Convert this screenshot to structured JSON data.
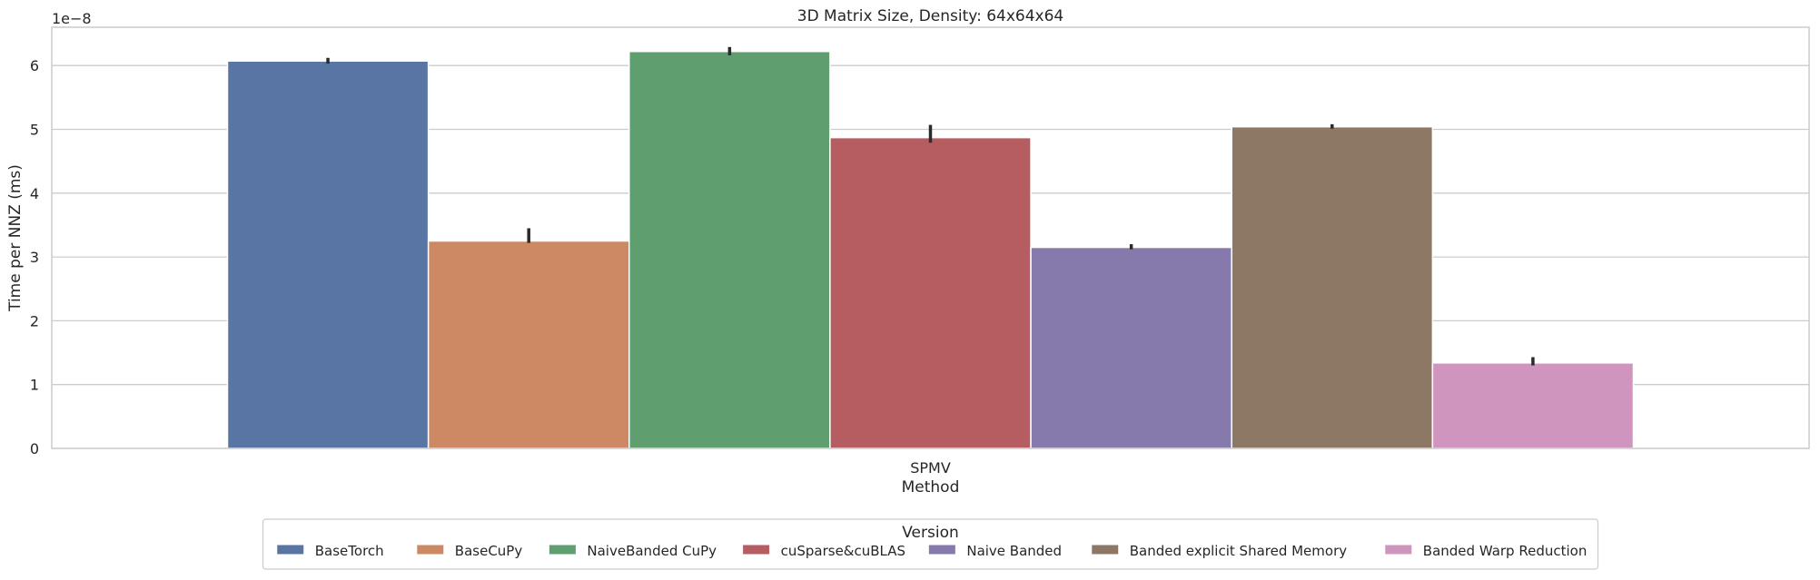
{
  "chart_data": {
    "type": "bar",
    "title": "3D Matrix Size, Density: 64x64x64",
    "xlabel": "Method",
    "ylabel": "Time per NNZ (ms)",
    "y_scale_label": "1e−8",
    "categories": [
      "SPMV"
    ],
    "ylim": [
      0,
      6.6
    ],
    "yticks": [
      0,
      1,
      2,
      3,
      4,
      5,
      6
    ],
    "grid": true,
    "legend_title": "Version",
    "legend_placement": "bottom-center",
    "series": [
      {
        "name": "BaseTorch",
        "color": "#5875a4",
        "values": [
          6.07
        ],
        "error": [
          6.03,
          6.12
        ]
      },
      {
        "name": "BaseCuPy",
        "color": "#cc8963",
        "values": [
          3.25
        ],
        "error": [
          3.22,
          3.45
        ]
      },
      {
        "name": "NaiveBanded CuPy",
        "color": "#5f9e6e",
        "values": [
          6.22
        ],
        "error": [
          6.16,
          6.29
        ]
      },
      {
        "name": "cuSparse&cuBLAS",
        "color": "#b55d60",
        "values": [
          4.87
        ],
        "error": [
          4.79,
          5.07
        ]
      },
      {
        "name": "Naive Banded",
        "color": "#857aab",
        "values": [
          3.15
        ],
        "error": [
          3.12,
          3.2
        ]
      },
      {
        "name": "Banded explicit Shared Memory",
        "color": "#8d7866",
        "values": [
          5.04
        ],
        "error": [
          5.01,
          5.08
        ]
      },
      {
        "name": "Banded Warp Reduction",
        "color": "#d095bf",
        "values": [
          1.34
        ],
        "error": [
          1.3,
          1.43
        ]
      }
    ]
  }
}
